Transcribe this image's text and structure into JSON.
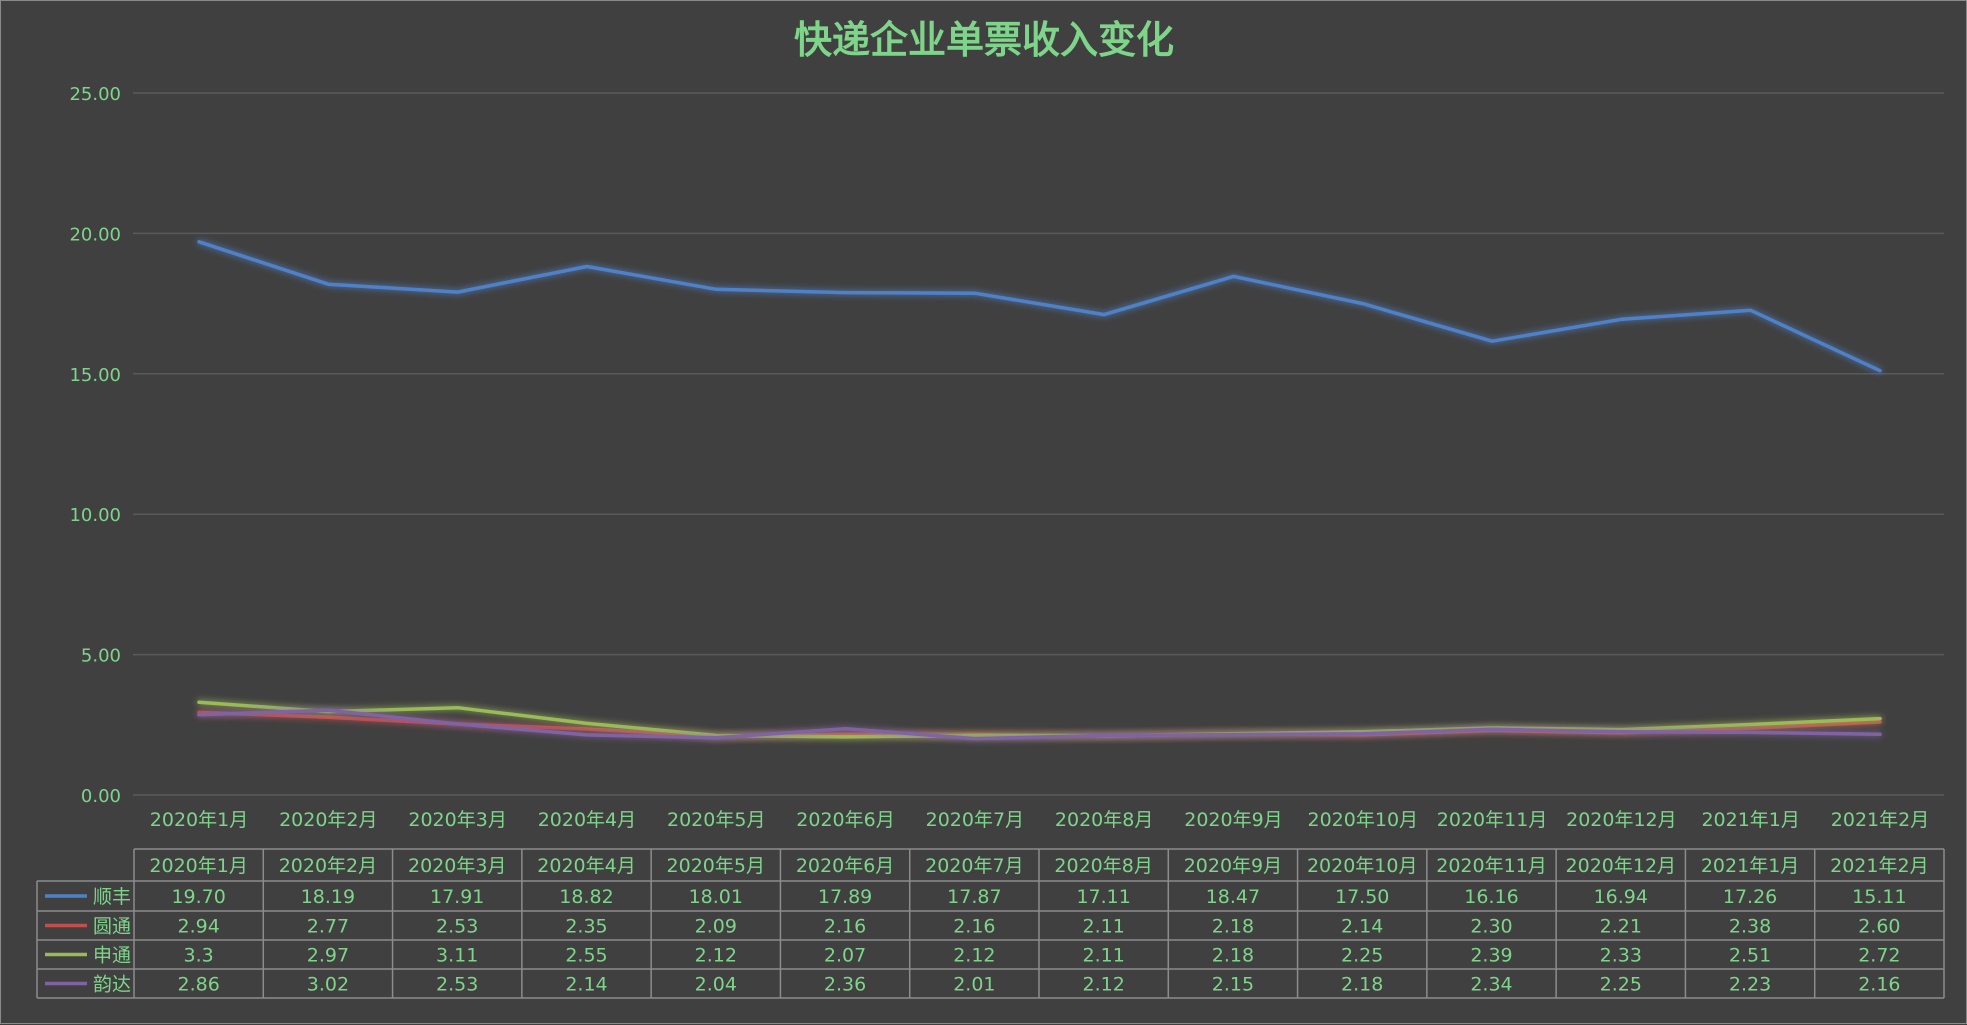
{
  "chart_data": {
    "type": "line",
    "title": "快递企业单票收入变化",
    "categories": [
      "2020年1月",
      "2020年2月",
      "2020年3月",
      "2020年4月",
      "2020年5月",
      "2020年6月",
      "2020年7月",
      "2020年8月",
      "2020年9月",
      "2020年10月",
      "2020年11月",
      "2020年12月",
      "2021年1月",
      "2021年2月"
    ],
    "yticks": [
      "0.00",
      "5.00",
      "10.00",
      "15.00",
      "20.00",
      "25.00"
    ],
    "ylim": [
      0,
      25
    ],
    "grid": true,
    "legend": "data-table",
    "series": [
      {
        "name": "顺丰",
        "color": "#4f81c9",
        "labels": [
          "19.70",
          "18.19",
          "17.91",
          "18.82",
          "18.01",
          "17.89",
          "17.87",
          "17.11",
          "18.47",
          "17.50",
          "16.16",
          "16.94",
          "17.26",
          "15.11"
        ],
        "values": [
          19.7,
          18.19,
          17.91,
          18.82,
          18.01,
          17.89,
          17.87,
          17.11,
          18.47,
          17.5,
          16.16,
          16.94,
          17.26,
          15.11
        ]
      },
      {
        "name": "圆通",
        "color": "#c0504d",
        "labels": [
          "2.94",
          "2.77",
          "2.53",
          "2.35",
          "2.09",
          "2.16",
          "2.16",
          "2.11",
          "2.18",
          "2.14",
          "2.30",
          "2.21",
          "2.38",
          "2.60"
        ],
        "values": [
          2.94,
          2.77,
          2.53,
          2.35,
          2.09,
          2.16,
          2.16,
          2.11,
          2.18,
          2.14,
          2.3,
          2.21,
          2.38,
          2.6
        ]
      },
      {
        "name": "申通",
        "color": "#9bbb59",
        "labels": [
          "3.3",
          "2.97",
          "3.11",
          "2.55",
          "2.12",
          "2.07",
          "2.12",
          "2.11",
          "2.18",
          "2.25",
          "2.39",
          "2.33",
          "2.51",
          "2.72"
        ],
        "values": [
          3.3,
          2.97,
          3.11,
          2.55,
          2.12,
          2.07,
          2.12,
          2.11,
          2.18,
          2.25,
          2.39,
          2.33,
          2.51,
          2.72
        ]
      },
      {
        "name": "韵达",
        "color": "#8064a2",
        "labels": [
          "2.86",
          "3.02",
          "2.53",
          "2.14",
          "2.04",
          "2.36",
          "2.01",
          "2.12",
          "2.15",
          "2.18",
          "2.34",
          "2.25",
          "2.23",
          "2.16"
        ],
        "values": [
          2.86,
          3.02,
          2.53,
          2.14,
          2.04,
          2.36,
          2.01,
          2.12,
          2.15,
          2.18,
          2.34,
          2.25,
          2.23,
          2.16
        ]
      }
    ]
  }
}
